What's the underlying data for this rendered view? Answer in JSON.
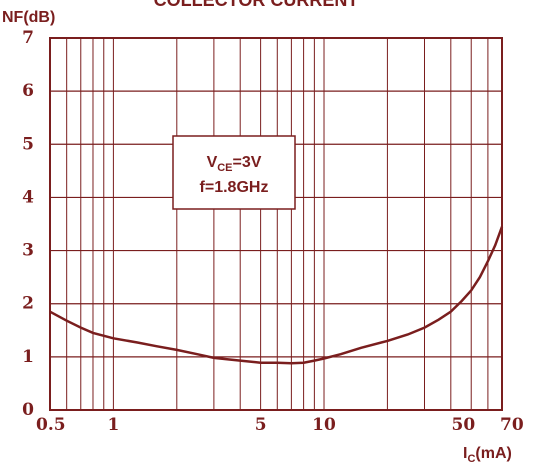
{
  "chart_data": {
    "type": "line",
    "title": "COLLECTOR CURRENT",
    "ylabel": "NF(dB)",
    "xlabel": {
      "main": "I",
      "sub": "C",
      "unit": "(mA)"
    },
    "xscale": "log",
    "xlim": [
      0.5,
      70
    ],
    "ylim": [
      0,
      7
    ],
    "grid": true,
    "x_ticks": [
      "0.5",
      "1",
      "5",
      "10",
      "50",
      "70"
    ],
    "x_tick_values": [
      0.5,
      1,
      5,
      10,
      50,
      70
    ],
    "y_ticks": [
      "0",
      "1",
      "2",
      "3",
      "4",
      "5",
      "6",
      "7"
    ],
    "y_tick_values": [
      0,
      1,
      2,
      3,
      4,
      5,
      6,
      7
    ],
    "annotation": {
      "line1_main": "V",
      "line1_sub": "CE",
      "line1_rest": "=3V",
      "line2": "f=1.8GHz"
    },
    "series": [
      {
        "x": [
          0.5,
          0.6,
          0.7,
          0.8,
          1.0,
          1.3,
          1.6,
          2.0,
          2.5,
          3.0,
          4.0,
          5.0,
          6.0,
          7.0,
          8.0,
          9.0,
          10.0,
          12.0,
          15.0,
          20.0,
          25.0,
          30.0,
          35.0,
          40.0,
          45.0,
          50.0,
          55.0,
          60.0,
          65.0,
          70.0
        ],
        "y": [
          1.85,
          1.68,
          1.55,
          1.45,
          1.35,
          1.27,
          1.2,
          1.13,
          1.05,
          0.98,
          0.93,
          0.89,
          0.89,
          0.88,
          0.89,
          0.93,
          0.97,
          1.05,
          1.17,
          1.3,
          1.42,
          1.55,
          1.7,
          1.85,
          2.05,
          2.25,
          2.5,
          2.8,
          3.1,
          3.45
        ]
      }
    ]
  }
}
